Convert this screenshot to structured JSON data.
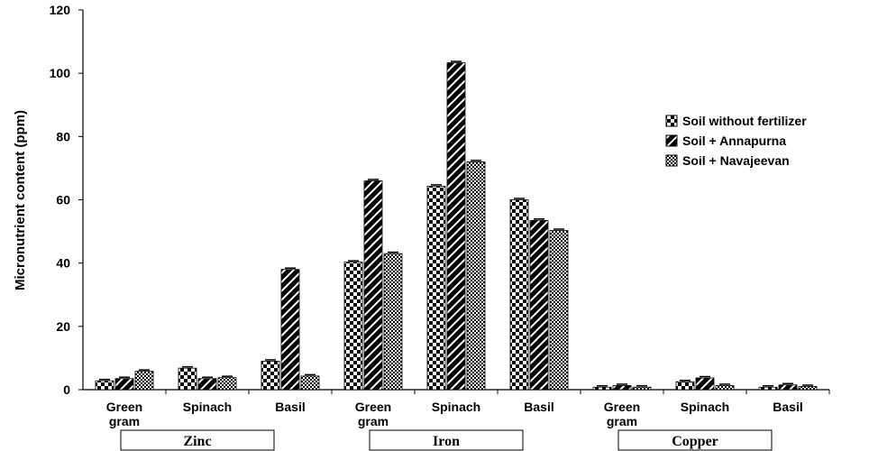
{
  "chart_data": {
    "type": "bar",
    "ylabel": "Micronutrient content (ppm)",
    "ylim": [
      0,
      120
    ],
    "yticks": [
      "0",
      "20",
      "40",
      "60",
      "80",
      "100",
      "120"
    ],
    "groups": [
      {
        "name": "Zinc",
        "categories": [
          [
            "Green",
            "gram"
          ],
          [
            "Spinach"
          ],
          [
            "Basil"
          ]
        ]
      },
      {
        "name": "Iron",
        "categories": [
          [
            "Green",
            "gram"
          ],
          [
            "Spinach"
          ],
          [
            "Basil"
          ]
        ]
      },
      {
        "name": "Copper",
        "categories": [
          [
            "Green",
            "gram"
          ],
          [
            "Spinach"
          ],
          [
            "Basil"
          ]
        ]
      }
    ],
    "series": [
      {
        "name": "Soil without fertilizer",
        "pattern": "checker-coarse",
        "values": [
          2.8,
          6.8,
          9.0,
          40.3,
          64.3,
          60.0,
          0.8,
          2.5,
          0.8
        ]
      },
      {
        "name": "Soil + Annapurna",
        "pattern": "diagonal",
        "values": [
          3.5,
          3.5,
          38.0,
          66.0,
          103.3,
          53.5,
          1.3,
          3.7,
          1.5
        ]
      },
      {
        "name": "Soil  + Navajeevan",
        "pattern": "checker-fine",
        "values": [
          5.8,
          3.8,
          4.3,
          43.0,
          72.0,
          50.3,
          0.8,
          1.3,
          1.0
        ]
      }
    ],
    "legend_position": "right",
    "grid": false
  }
}
